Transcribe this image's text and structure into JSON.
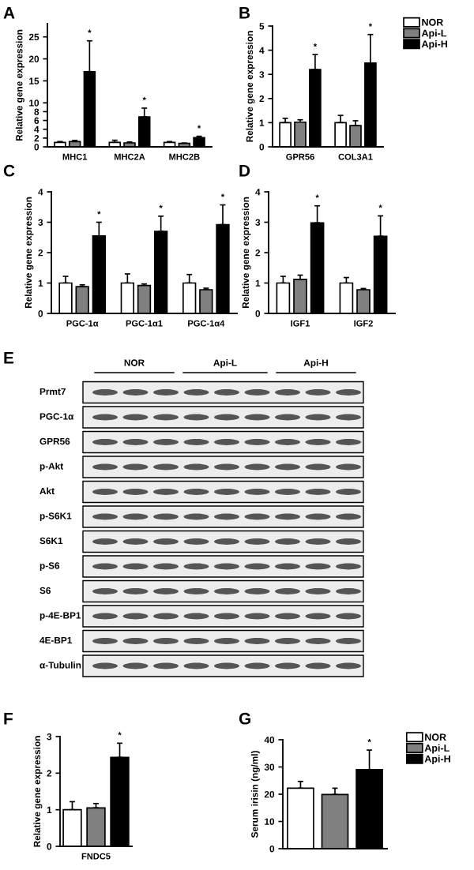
{
  "chart_data": [
    {
      "type": "bar",
      "title": "A",
      "ylabel": "Relative gene expression",
      "categories": [
        "MHC1",
        "MHC2A",
        "MHC2B"
      ],
      "ylim": [
        0,
        28
      ],
      "yticks": [
        0,
        2,
        4,
        6,
        8,
        10,
        15,
        20,
        25
      ],
      "grid": false,
      "legend": false,
      "series": [
        {
          "color": "#ffffff",
          "values": [
            1.0,
            1.0,
            1.0
          ],
          "errors": [
            [
              1.0,
              1.2
            ],
            [
              1.0,
              1.5
            ],
            [
              1.0,
              1.2
            ]
          ]
        },
        {
          "color": "#808080",
          "values": [
            1.2,
            0.9,
            0.8
          ],
          "errors": [
            [
              1.2,
              1.45
            ],
            [
              0.9,
              1.1
            ],
            [
              0.8,
              0.85
            ]
          ]
        },
        {
          "color": "#000000",
          "values": [
            17.1,
            6.8,
            2.1
          ],
          "errors": [
            [
              17.1,
              24.1
            ],
            [
              6.8,
              8.8
            ],
            [
              2.1,
              2.4
            ]
          ]
        }
      ],
      "annotations": [
        "*",
        "*",
        "*"
      ]
    },
    {
      "type": "bar",
      "title": "B",
      "ylabel": "Relative gene expression",
      "categories": [
        "GPR56",
        "COL3A1"
      ],
      "ylim": [
        0,
        5
      ],
      "yticks": [
        0,
        1,
        2,
        3,
        4,
        5
      ],
      "grid": false,
      "legend": "right",
      "series": [
        {
          "name": "NOR",
          "color": "#ffffff",
          "values": [
            1.0,
            1.0
          ],
          "errors": [
            [
              1.0,
              1.18
            ],
            [
              1.0,
              1.3
            ]
          ]
        },
        {
          "name": "Api-L",
          "color": "#808080",
          "values": [
            1.02,
            0.88
          ],
          "errors": [
            [
              1.02,
              1.12
            ],
            [
              0.88,
              1.08
            ]
          ]
        },
        {
          "name": "Api-H",
          "color": "#000000",
          "values": [
            3.2,
            3.47
          ],
          "errors": [
            [
              3.2,
              3.82
            ],
            [
              3.47,
              4.65
            ]
          ]
        }
      ],
      "annotations": [
        "*",
        "*"
      ]
    },
    {
      "type": "bar",
      "title": "C",
      "ylabel": "Relative gene expression",
      "categories": [
        "PGC-1α",
        "PGC-1α1",
        "PGC-1α4"
      ],
      "ylim": [
        0,
        4
      ],
      "yticks": [
        0,
        1,
        2,
        3,
        4
      ],
      "grid": false,
      "legend": false,
      "series": [
        {
          "color": "#ffffff",
          "values": [
            1.0,
            1.0,
            1.0
          ],
          "errors": [
            [
              1.0,
              1.22
            ],
            [
              1.0,
              1.3
            ],
            [
              1.0,
              1.28
            ]
          ]
        },
        {
          "color": "#808080",
          "values": [
            0.88,
            0.92,
            0.78
          ],
          "errors": [
            [
              0.88,
              0.94
            ],
            [
              0.92,
              0.97
            ],
            [
              0.78,
              0.83
            ]
          ]
        },
        {
          "color": "#000000",
          "values": [
            2.55,
            2.7,
            2.92
          ],
          "errors": [
            [
              2.55,
              3.0
            ],
            [
              2.7,
              3.2
            ],
            [
              2.92,
              3.57
            ]
          ]
        }
      ],
      "annotations": [
        "*",
        "*",
        "*"
      ]
    },
    {
      "type": "bar",
      "title": "D",
      "ylabel": "Relative gene expression",
      "categories": [
        "IGF1",
        "IGF2"
      ],
      "ylim": [
        0,
        4
      ],
      "yticks": [
        0,
        1,
        2,
        3,
        4
      ],
      "grid": false,
      "legend": false,
      "series": [
        {
          "color": "#ffffff",
          "values": [
            1.0,
            1.0
          ],
          "errors": [
            [
              1.0,
              1.22
            ],
            [
              1.0,
              1.18
            ]
          ]
        },
        {
          "color": "#808080",
          "values": [
            1.12,
            0.78
          ],
          "errors": [
            [
              1.12,
              1.26
            ],
            [
              0.78,
              0.82
            ]
          ]
        },
        {
          "color": "#000000",
          "values": [
            2.98,
            2.54
          ],
          "errors": [
            [
              2.98,
              3.54
            ],
            [
              2.54,
              3.21
            ]
          ]
        }
      ],
      "annotations": [
        "*",
        "*"
      ]
    },
    {
      "type": "other",
      "title": "E",
      "categories": [
        "NOR",
        "Api-L",
        "Api-H"
      ],
      "y_categories": [
        "Prmt7",
        "PGC-1α",
        "GPR56",
        "p-Akt",
        "Akt",
        "p-S6K1",
        "S6K1",
        "p-S6",
        "S6",
        "p-4E-BP1",
        "4E-BP1",
        "α-Tubulin"
      ]
    },
    {
      "type": "bar",
      "title": "F",
      "ylabel": "Relative gene expression",
      "categories": [
        "FNDC5"
      ],
      "ylim": [
        0,
        3
      ],
      "yticks": [
        0,
        1,
        2,
        3
      ],
      "grid": false,
      "legend": false,
      "series": [
        {
          "color": "#ffffff",
          "values": [
            1.0
          ],
          "errors": [
            [
              1.0,
              1.22
            ]
          ]
        },
        {
          "color": "#808080",
          "values": [
            1.05
          ],
          "errors": [
            [
              1.05,
              1.17
            ]
          ]
        },
        {
          "color": "#000000",
          "values": [
            2.43
          ],
          "errors": [
            [
              2.43,
              2.82
            ]
          ]
        }
      ],
      "annotations": [
        "*"
      ]
    },
    {
      "type": "bar",
      "title": "G",
      "ylabel": "Serum irisin (ng/ml)",
      "categories": [
        null
      ],
      "ylim": [
        0,
        40
      ],
      "yticks": [
        0,
        10,
        20,
        30,
        40
      ],
      "grid": false,
      "legend": "right",
      "series": [
        {
          "name": "NOR",
          "color": "#ffffff",
          "values": [
            22.2
          ],
          "errors": [
            [
              22.2,
              24.7
            ]
          ]
        },
        {
          "name": "Api-L",
          "color": "#808080",
          "values": [
            19.9
          ],
          "errors": [
            [
              19.9,
              22.2
            ]
          ]
        },
        {
          "name": "Api-H",
          "color": "#000000",
          "values": [
            29.0
          ],
          "errors": [
            [
              29.0,
              36.2
            ]
          ]
        }
      ],
      "annotations": [
        "*"
      ]
    }
  ]
}
